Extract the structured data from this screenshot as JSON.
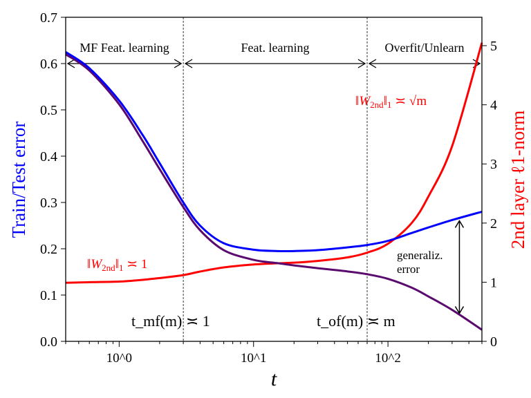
{
  "chart_data": {
    "type": "line",
    "xlabel": "t",
    "ylabel_left": "Train/Test error",
    "ylabel_right": "2nd layer ℓ1-norm",
    "xscale": "log",
    "xlim": [
      0.4,
      500
    ],
    "ylim_left": [
      0,
      0.7
    ],
    "ylim_right": [
      0,
      5.48
    ],
    "x_ticks": [
      {
        "value": 1,
        "label": "10^0"
      },
      {
        "value": 10,
        "label": "10^1"
      },
      {
        "value": 100,
        "label": "10^2"
      }
    ],
    "y_ticks_left": [
      "0.0",
      "0.1",
      "0.2",
      "0.3",
      "0.4",
      "0.5",
      "0.6",
      "0.7"
    ],
    "y_ticks_right": [
      "0",
      "1",
      "2",
      "3",
      "4",
      "5"
    ],
    "grid": false,
    "colors": {
      "test": "#0000ff",
      "train": "#5a0a6e",
      "norm": "#ff0000",
      "left_label": "#0000ff",
      "right_label": "#ff0000"
    },
    "x": [
      0.4,
      0.6,
      1,
      1.5,
      2,
      3,
      4,
      6,
      10,
      15,
      20,
      30,
      50,
      70,
      100,
      150,
      200,
      300,
      500
    ],
    "series": [
      {
        "key": "test",
        "axis": "left",
        "values": [
          0.625,
          0.59,
          0.52,
          0.445,
          0.385,
          0.3,
          0.25,
          0.212,
          0.198,
          0.195,
          0.195,
          0.197,
          0.203,
          0.208,
          0.217,
          0.234,
          0.246,
          0.262,
          0.28
        ]
      },
      {
        "key": "train",
        "axis": "left",
        "values": [
          0.62,
          0.585,
          0.512,
          0.432,
          0.372,
          0.29,
          0.24,
          0.197,
          0.176,
          0.169,
          0.164,
          0.158,
          0.151,
          0.145,
          0.135,
          0.116,
          0.097,
          0.068,
          0.025
        ]
      },
      {
        "key": "norm",
        "axis": "right",
        "values": [
          0.99,
          1.0,
          1.01,
          1.04,
          1.07,
          1.12,
          1.18,
          1.25,
          1.3,
          1.32,
          1.33,
          1.36,
          1.42,
          1.5,
          1.65,
          2.0,
          2.45,
          3.3,
          5.05
        ]
      }
    ],
    "vlines": [
      {
        "x": 3,
        "label": "t_mf(m) ≍ 1"
      },
      {
        "x": 70,
        "label": "t_of(m) ≍ m"
      }
    ],
    "regions": [
      {
        "from": 0.4,
        "to": 3,
        "label": "MF Feat. learning"
      },
      {
        "from": 3,
        "to": 70,
        "label": "Feat. learning"
      },
      {
        "from": 70,
        "to": 500,
        "label": "Overfit/Unlearn"
      }
    ],
    "annotations": {
      "norm_small": "‖W2nd‖1 ≍ 1",
      "norm_large": "‖W2nd‖1 ≍ √m",
      "gen_error_line1": "generaliz.",
      "gen_error_line2": "error",
      "gen_error_at_t": 340
    }
  }
}
